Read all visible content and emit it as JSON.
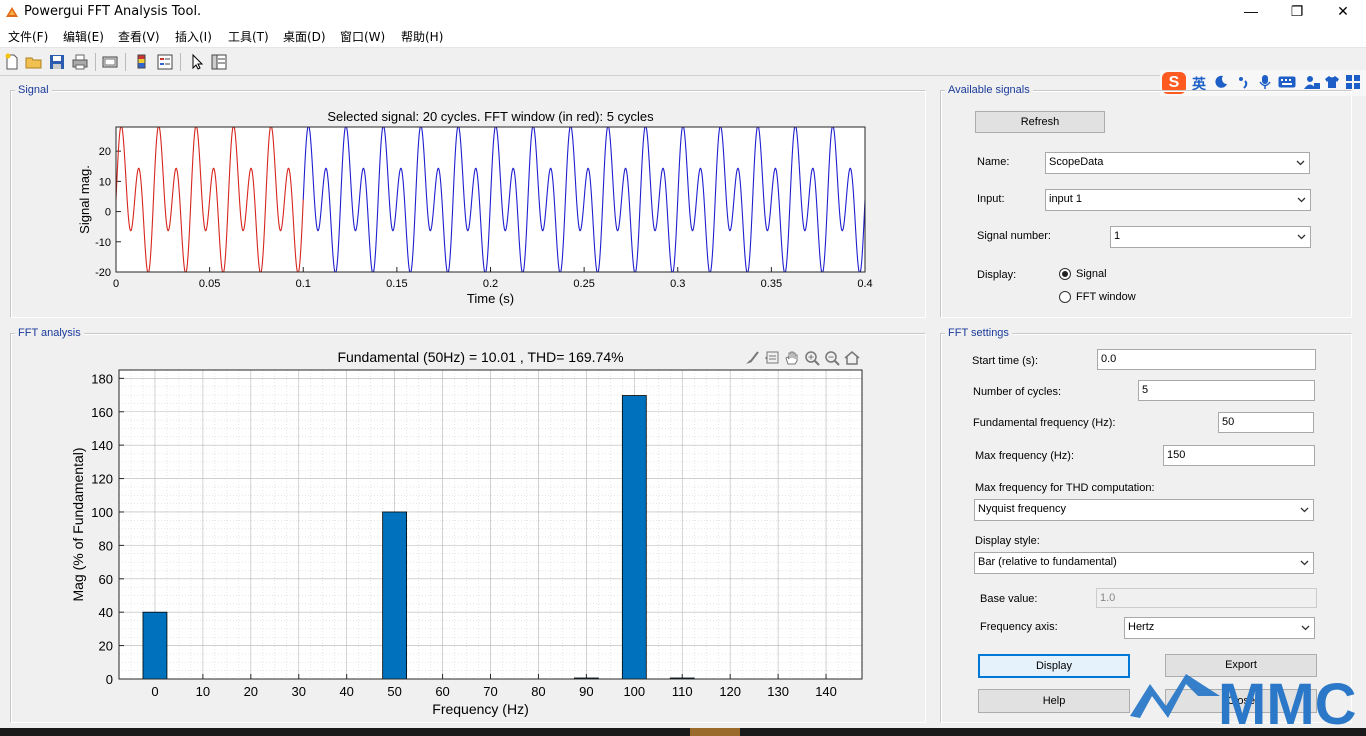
{
  "window": {
    "title": "Powergui FFT Analysis Tool.",
    "minimize": "—",
    "restore": "❐",
    "close": "✕"
  },
  "menu": [
    "文件(F)",
    "编辑(E)",
    "查看(V)",
    "插入(I)",
    "工具(T)",
    "桌面(D)",
    "窗口(W)",
    "帮助(H)"
  ],
  "toolbar_icons": [
    "new-file-icon",
    "open-folder-icon",
    "save-icon",
    "print-icon",
    "print-preview-icon",
    "colorbar-icon",
    "legend-icon",
    "pointer-icon",
    "property-inspector-icon"
  ],
  "ime_bar": {
    "logo": "S",
    "lang": "英",
    "icons": [
      "moon-icon",
      "punctuation-icon",
      "microphone-icon",
      "keyboard-icon",
      "user-icon",
      "shirt-icon",
      "grid-icon"
    ]
  },
  "signal_panel": {
    "title": "Signal",
    "chart_title": "Selected signal: 20 cycles. FFT window (in red): 5 cycles",
    "ylabel": "Signal mag.",
    "xlabel": "Time (s)"
  },
  "fft_panel": {
    "title": "FFT analysis",
    "chart_title": "Fundamental (50Hz) = 10.01 , THD= 169.74%",
    "ylabel": "Mag (% of Fundamental)",
    "xlabel": "Frequency (Hz)",
    "axes_toolbar_icons": [
      "brush-icon",
      "datatip-icon",
      "pan-icon",
      "zoom-in-icon",
      "zoom-out-icon",
      "home-icon"
    ]
  },
  "available_signals": {
    "title": "Available signals",
    "refresh_label": "Refresh",
    "name_label": "Name:",
    "name_value": "ScopeData",
    "input_label": "Input:",
    "input_value": "input 1",
    "signal_number_label": "Signal number:",
    "signal_number_value": "1",
    "display_label": "Display:",
    "display_options": [
      "Signal",
      "FFT window"
    ],
    "display_selected": "Signal"
  },
  "fft_settings": {
    "title": "FFT settings",
    "start_time_label": "Start time (s):",
    "start_time_value": "0.0",
    "cycles_label": "Number of cycles:",
    "cycles_value": "5",
    "fund_freq_label": "Fundamental frequency (Hz):",
    "fund_freq_value": "50",
    "max_freq_label": "Max frequency (Hz):",
    "max_freq_value": "150",
    "thd_label": "Max frequency for THD computation:",
    "thd_value": "Nyquist frequency",
    "style_label": "Display style:",
    "style_value": "Bar (relative to fundamental)",
    "base_label": "Base value:",
    "base_value": "1.0",
    "freq_axis_label": "Frequency axis:",
    "freq_axis_value": "Hertz",
    "display_btn": "Display",
    "export_btn": "Export",
    "help_btn": "Help",
    "close_btn": "Close"
  },
  "watermark": "MMC",
  "colors": {
    "red": "#d7261e",
    "blue": "#1f1fd0",
    "bar": "#0072bd",
    "title_blue": "#1a3a9a"
  },
  "chart_data": [
    {
      "type": "line",
      "title": "Selected signal: 20 cycles. FFT window (in red): 5 cycles",
      "xlabel": "Time (s)",
      "ylabel": "Signal mag.",
      "xlim": [
        0,
        0.4
      ],
      "ylim": [
        -20,
        28
      ],
      "xticks": [
        0,
        0.05,
        0.1,
        0.15,
        0.2,
        0.25,
        0.3,
        0.35,
        0.4
      ],
      "xtick_labels": [
        "0",
        "0.05",
        "0.1",
        "0.15",
        "0.2",
        "0.25",
        "0.3",
        "0.35",
        "0.4"
      ],
      "yticks": [
        -20,
        -10,
        0,
        10,
        20
      ],
      "ytick_labels": [
        "-20",
        "-10",
        "0",
        "10",
        "20"
      ],
      "series": [
        {
          "components": [
            {
              "freq": 0,
              "amp": 4
            },
            {
              "freq": 50,
              "amp": 10
            },
            {
              "freq": 100,
              "amp": 17
            }
          ],
          "window": [
            0,
            0.1
          ]
        },
        {
          "components": [
            {
              "freq": 0,
              "amp": 4
            },
            {
              "freq": 50,
              "amp": 10
            },
            {
              "freq": 100,
              "amp": 17
            }
          ],
          "window": [
            0.1,
            0.4
          ]
        }
      ]
    },
    {
      "type": "bar",
      "title": "Fundamental (50Hz) = 10.01 , THD= 169.74%",
      "xlabel": "Frequency (Hz)",
      "ylabel": "Mag (% of Fundamental)",
      "xlim": [
        -7.5,
        147.5
      ],
      "ylim": [
        0,
        185
      ],
      "categories": [
        0,
        10,
        20,
        30,
        40,
        50,
        60,
        70,
        80,
        90,
        100,
        110,
        120,
        130,
        140
      ],
      "values": [
        40,
        0,
        0,
        0,
        0,
        100,
        0,
        0,
        0,
        0.6,
        169.7,
        0.6,
        0,
        0,
        0
      ],
      "yticks": [
        0,
        20,
        40,
        60,
        80,
        100,
        120,
        140,
        160,
        180
      ],
      "grid": true
    }
  ]
}
